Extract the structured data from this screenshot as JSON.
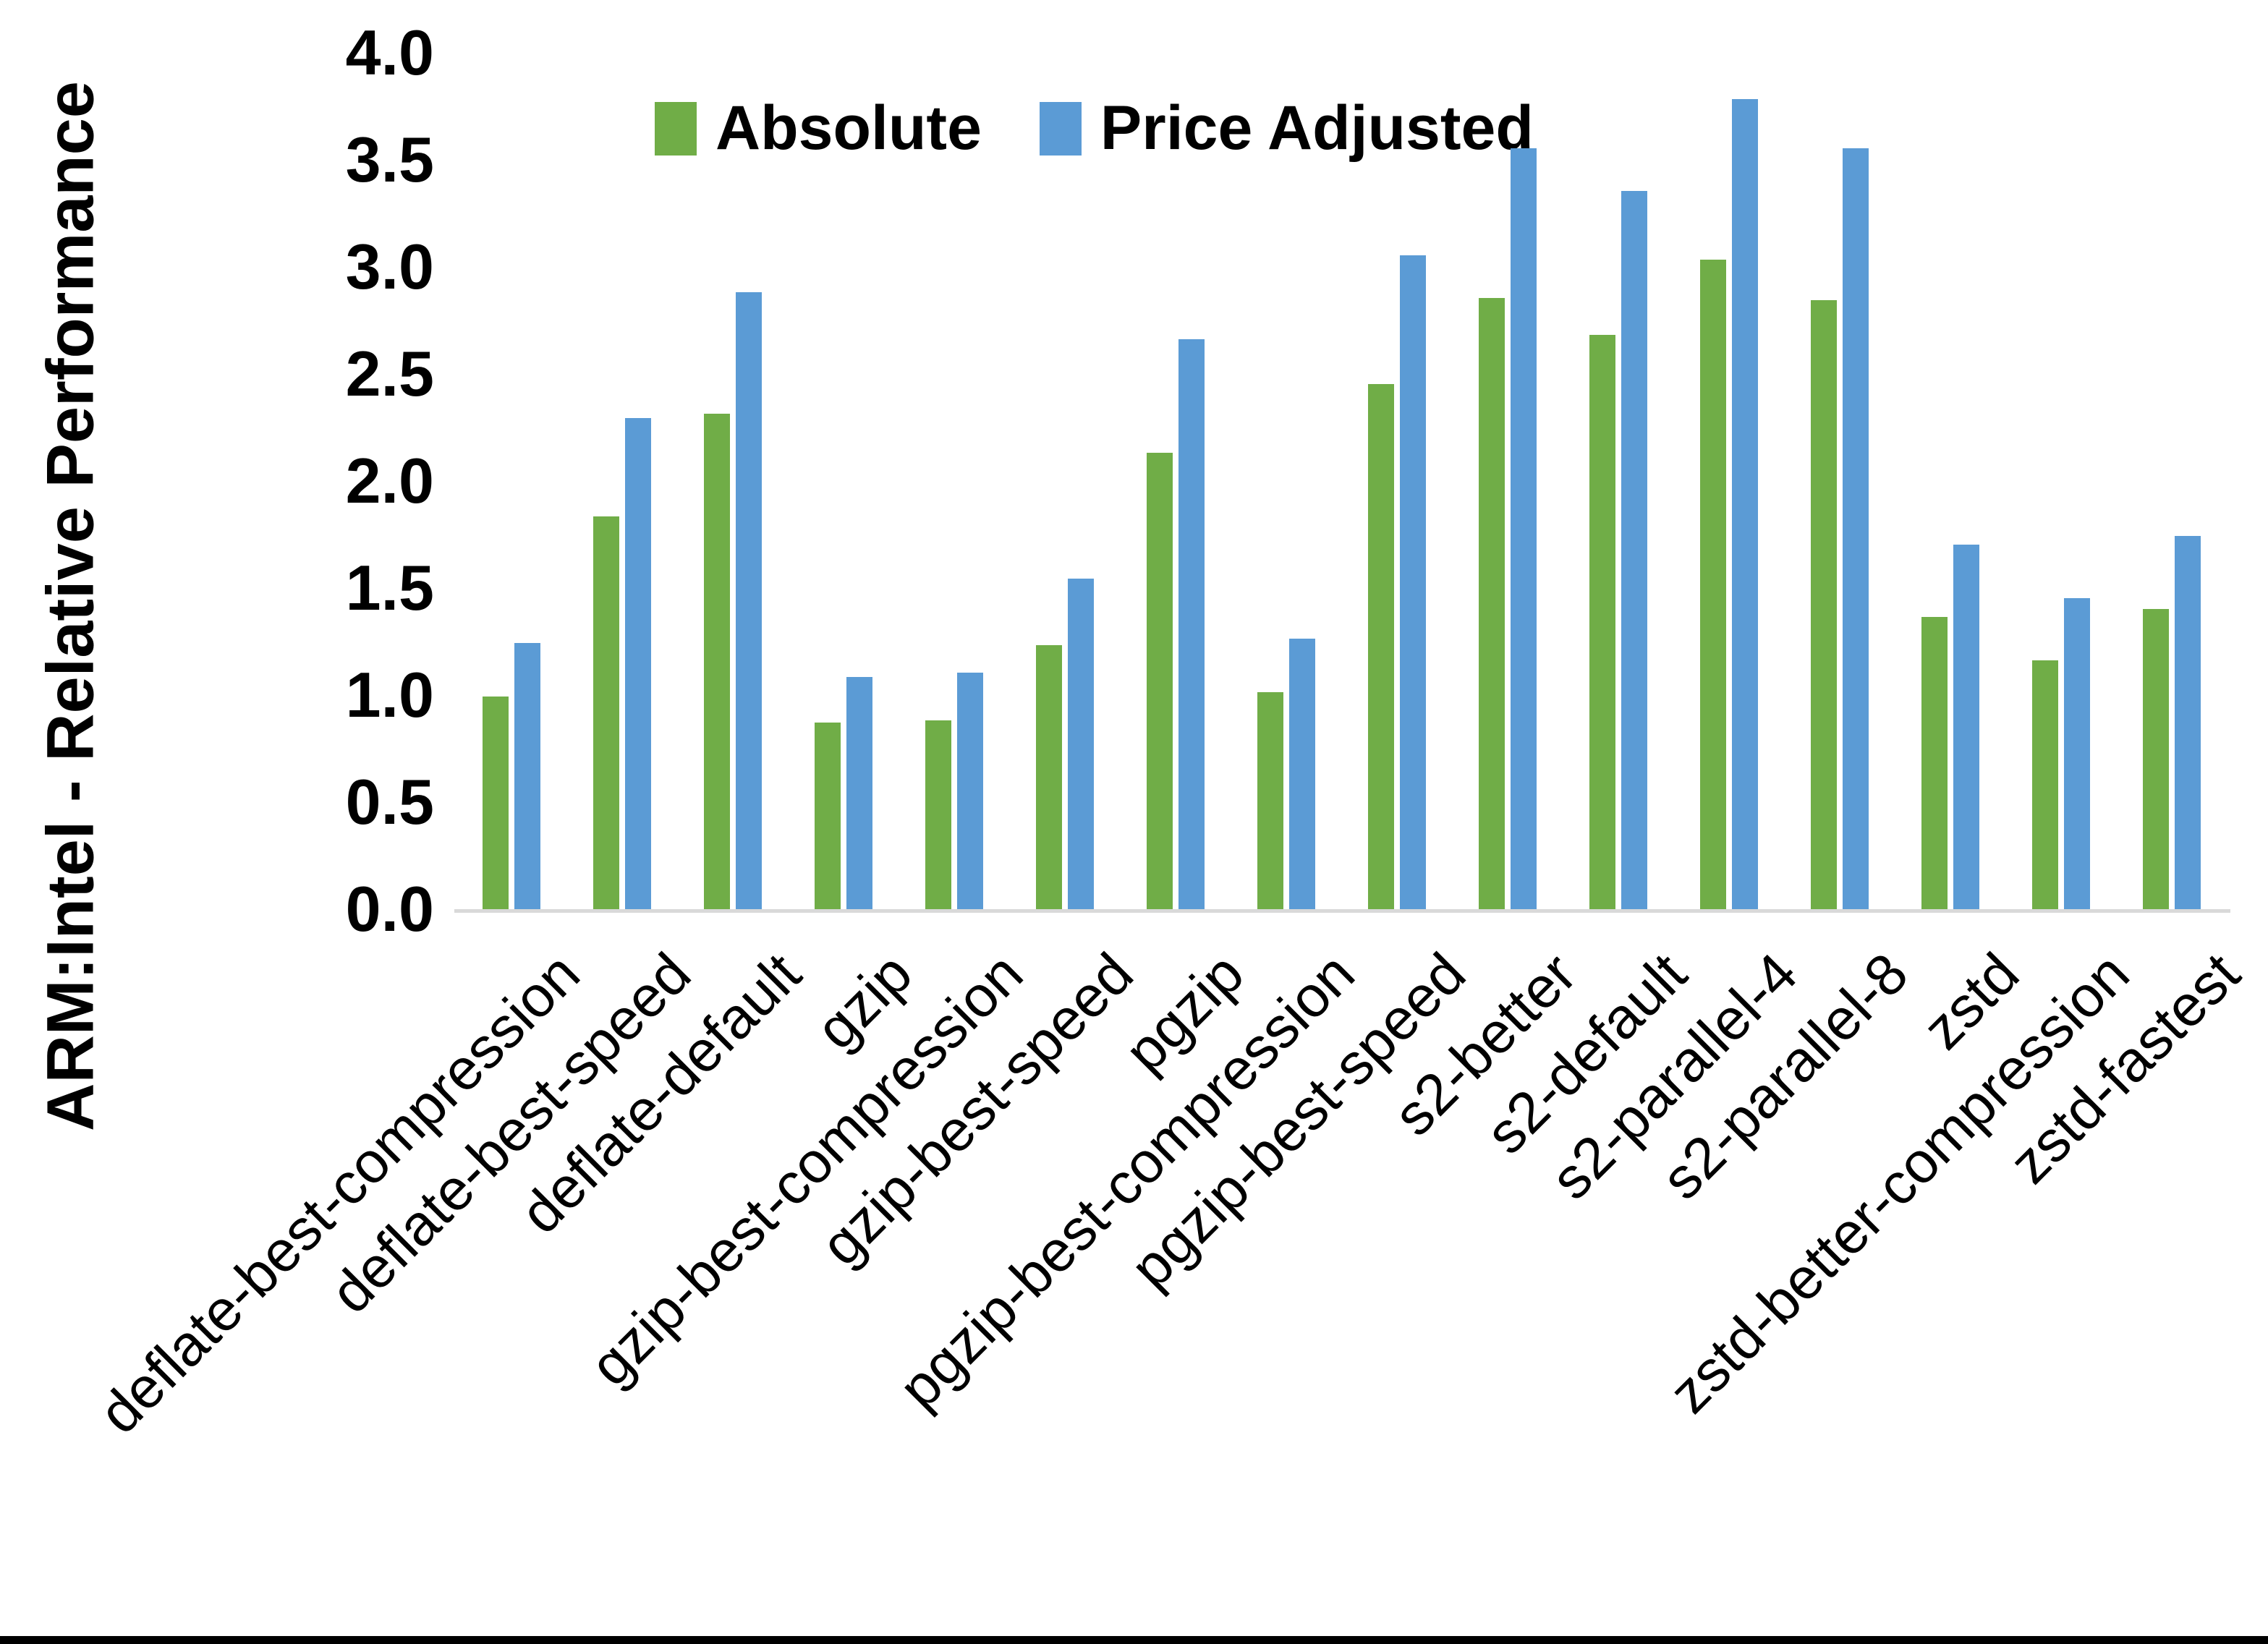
{
  "chart_data": {
    "type": "bar",
    "title": "",
    "ylabel": "ARM:Intel - Relative Performance",
    "xlabel": "",
    "ylim": [
      0.0,
      4.0
    ],
    "ytick_step": 0.5,
    "ytick_labels": [
      "0.0",
      "0.5",
      "1.0",
      "1.5",
      "2.0",
      "2.5",
      "3.0",
      "3.5",
      "4.0"
    ],
    "grid": false,
    "legend_position": "top",
    "categories": [
      "deflate-best-compression",
      "deflate-best-speed",
      "deflate-default",
      "gzip",
      "gzip-best-compression",
      "gzip-best-speed",
      "pgzip",
      "pgzip-best-compression",
      "pgzip-best-speed",
      "s2-better",
      "s2-default",
      "s2-parallel-4",
      "s2-parallel-8",
      "zstd",
      "zstd-better-compression",
      "zstd-fastest"
    ],
    "series": [
      {
        "name": "Absolute",
        "color": "#70AD47",
        "values": [
          1.0,
          1.84,
          2.32,
          0.88,
          0.89,
          1.24,
          2.14,
          1.02,
          2.46,
          2.86,
          2.69,
          3.04,
          2.85,
          1.37,
          1.17,
          1.41
        ]
      },
      {
        "name": "Price Adjusted",
        "color": "#5B9BD5",
        "values": [
          1.25,
          2.3,
          2.89,
          1.09,
          1.11,
          1.55,
          2.67,
          1.27,
          3.06,
          3.56,
          3.36,
          3.79,
          3.56,
          1.71,
          1.46,
          1.75
        ]
      }
    ],
    "colors": {
      "axis_line": "#D9D9D9",
      "text": "#000000",
      "background": "#FFFFFF",
      "bottom_border": "#000000"
    }
  }
}
